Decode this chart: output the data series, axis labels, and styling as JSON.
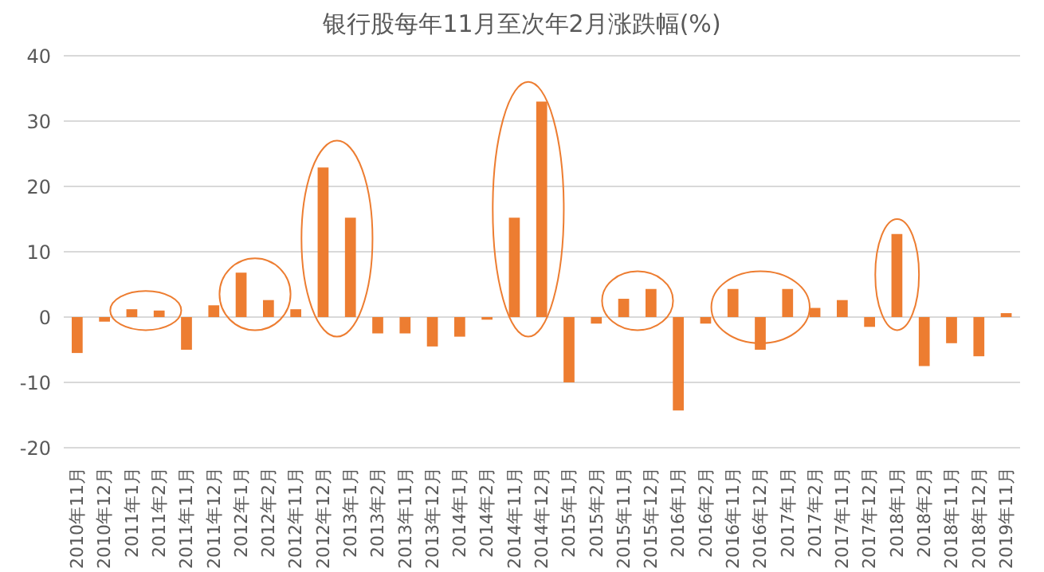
{
  "chart_data": {
    "type": "bar",
    "title": "银行股每年11月至次年2月涨跌幅(%)",
    "categories": [
      "2010年11月",
      "2010年12月",
      "2011年1月",
      "2011年2月",
      "2011年11月",
      "2011年12月",
      "2012年1月",
      "2012年2月",
      "2012年11月",
      "2012年12月",
      "2013年1月",
      "2013年2月",
      "2013年11月",
      "2013年12月",
      "2014年1月",
      "2014年2月",
      "2014年11月",
      "2014年12月",
      "2015年1月",
      "2015年2月",
      "2015年11月",
      "2015年12月",
      "2016年1月",
      "2016年2月",
      "2016年11月",
      "2016年12月",
      "2017年1月",
      "2017年2月",
      "2017年11月",
      "2017年12月",
      "2018年1月",
      "2018年2月",
      "2018年11月",
      "2018年12月",
      "2019年11月"
    ],
    "values": [
      -5.5,
      -0.7,
      1.2,
      1.0,
      -5,
      1.8,
      6.8,
      2.6,
      1.2,
      22.9,
      15.2,
      -2.5,
      -2.5,
      -4.5,
      -3,
      -0.4,
      15.2,
      33,
      -10,
      -1,
      2.8,
      4.3,
      -14.3,
      -1,
      4.3,
      -5,
      4.3,
      1.4,
      2.6,
      -1.5,
      12.7,
      -7.5,
      -4,
      -6,
      0.6
    ],
    "color": "#ed7d31",
    "ylim": [
      -20,
      40
    ],
    "yticks": [
      -20,
      -10,
      0,
      10,
      20,
      30,
      40
    ],
    "grid": "y"
  }
}
